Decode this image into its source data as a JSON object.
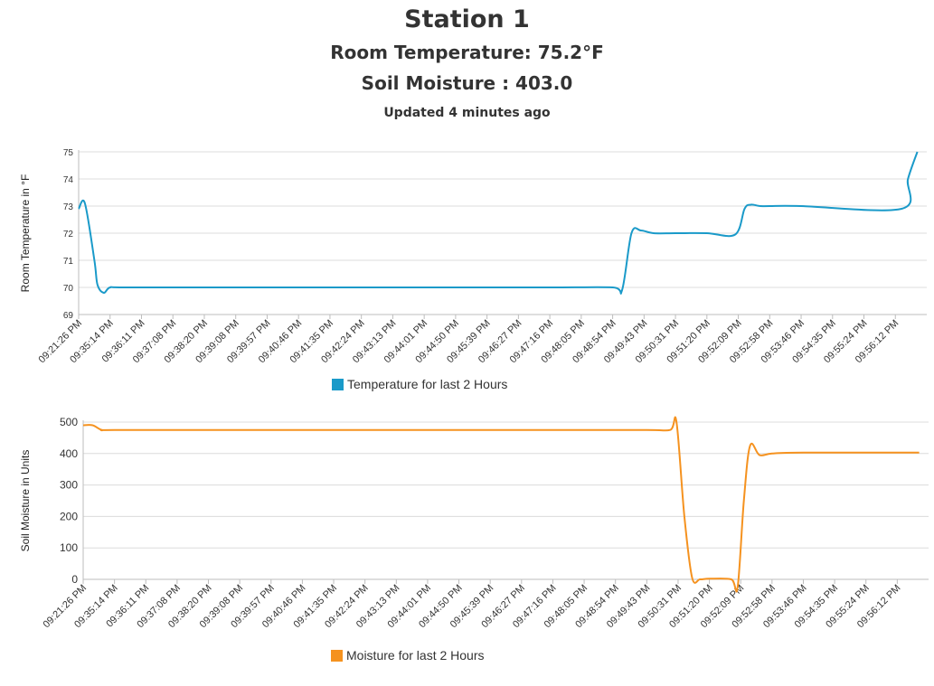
{
  "header": {
    "title": "Station 1",
    "temperature_line": "Room Temperature: 75.2°F",
    "moisture_line": "Soil Moisture : 403.0",
    "updated": "Updated 4 minutes ago"
  },
  "colors": {
    "temperature": "#1a9ac9",
    "moisture": "#f5921f",
    "grid": "#dcdcdc",
    "axis": "#bdbdbd"
  },
  "chart_data": [
    {
      "type": "line",
      "ylabel": "Room Temperature in °F",
      "ylim": [
        69,
        75
      ],
      "yticks": [
        69,
        70,
        71,
        72,
        73,
        74,
        75
      ],
      "grid": true,
      "legend_position": "bottom-center",
      "x_tick_labels": [
        "09:21:26 PM",
        "09:35:14 PM",
        "09:36:11 PM",
        "09:37:08 PM",
        "09:38:20 PM",
        "09:39:08 PM",
        "09:39:57 PM",
        "09:40:46 PM",
        "09:41:35 PM",
        "09:42:24 PM",
        "09:43:13 PM",
        "09:44:01 PM",
        "09:44:50 PM",
        "09:45:39 PM",
        "09:46:27 PM",
        "09:47:16 PM",
        "09:48:05 PM",
        "09:48:54 PM",
        "09:49:43 PM",
        "09:50:31 PM",
        "09:51:20 PM",
        "09:52:09 PM",
        "09:52:58 PM",
        "09:53:46 PM",
        "09:54:35 PM",
        "09:55:24 PM",
        "09:56:12 PM"
      ],
      "series": [
        {
          "name": "Temperature for last 2 Hours",
          "x_index": [
            0,
            0.2,
            0.5,
            0.6,
            0.8,
            1,
            1.5,
            5,
            10,
            15,
            17,
            17.3,
            17.6,
            17.9,
            18.3,
            19,
            20,
            20.9,
            21.2,
            21.4,
            21.7,
            22,
            23,
            26.2,
            26.4,
            26.7
          ],
          "values": [
            72.9,
            73.1,
            71,
            70.1,
            69.8,
            70,
            70,
            70,
            70,
            70,
            70,
            69.9,
            72,
            72.1,
            72,
            72,
            72,
            71.95,
            72.9,
            73.05,
            73,
            73,
            73,
            72.9,
            74,
            75
          ]
        }
      ]
    },
    {
      "type": "line",
      "ylabel": "Soil Moisture in Units",
      "ylim": [
        0,
        500
      ],
      "yticks": [
        0,
        100,
        200,
        300,
        400,
        500
      ],
      "grid": true,
      "legend_position": "bottom-center",
      "x_tick_labels": [
        "09:21:26 PM",
        "09:35:14 PM",
        "09:36:11 PM",
        "09:37:08 PM",
        "09:38:20 PM",
        "09:39:08 PM",
        "09:39:57 PM",
        "09:40:46 PM",
        "09:41:35 PM",
        "09:42:24 PM",
        "09:43:13 PM",
        "09:44:01 PM",
        "09:44:50 PM",
        "09:45:39 PM",
        "09:46:27 PM",
        "09:47:16 PM",
        "09:48:05 PM",
        "09:48:54 PM",
        "09:49:43 PM",
        "09:50:31 PM",
        "09:51:20 PM",
        "09:52:09 PM",
        "09:52:58 PM",
        "09:53:46 PM",
        "09:54:35 PM",
        "09:55:24 PM",
        "09:56:12 PM"
      ],
      "series": [
        {
          "name": "Moisture for last 2 Hours",
          "x_index": [
            0,
            0.3,
            0.6,
            1,
            5,
            10,
            15,
            18,
            18.75,
            18.95,
            19.2,
            19.45,
            19.7,
            20,
            20.7,
            20.9,
            21.1,
            21.3,
            21.6,
            22,
            23,
            26,
            26.7
          ],
          "values": [
            490,
            490,
            475,
            475,
            475,
            475,
            475,
            475,
            475,
            500,
            200,
            5,
            0,
            2,
            0,
            -25,
            250,
            425,
            395,
            400,
            403,
            403,
            403
          ]
        }
      ]
    }
  ]
}
